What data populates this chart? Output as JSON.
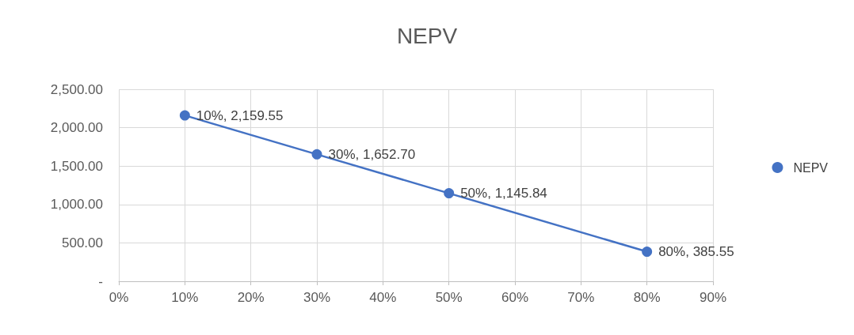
{
  "chart_data": {
    "type": "line",
    "title": "NEPV",
    "x": [
      10,
      30,
      50,
      80
    ],
    "series": [
      {
        "name": "NEPV",
        "color": "#4472c4",
        "values": [
          2159.55,
          1652.7,
          1145.84,
          385.55
        ],
        "value_labels": [
          "10%, 2,159.55",
          "30%, 1,652.70",
          "50%, 1,145.84",
          "80%, 385.55"
        ]
      }
    ],
    "xlim": [
      0,
      90
    ],
    "xticks": [
      {
        "value": 0,
        "label": "0%"
      },
      {
        "value": 10,
        "label": "10%"
      },
      {
        "value": 20,
        "label": "20%"
      },
      {
        "value": 30,
        "label": "30%"
      },
      {
        "value": 40,
        "label": "40%"
      },
      {
        "value": 50,
        "label": "50%"
      },
      {
        "value": 60,
        "label": "60%"
      },
      {
        "value": 70,
        "label": "70%"
      },
      {
        "value": 80,
        "label": "80%"
      },
      {
        "value": 90,
        "label": "90%"
      }
    ],
    "ylim": [
      0,
      2500
    ],
    "yticks": [
      {
        "value": 0,
        "label": "-"
      },
      {
        "value": 500,
        "label": "500.00"
      },
      {
        "value": 1000,
        "label": "1,000.00"
      },
      {
        "value": 1500,
        "label": "1,500.00"
      },
      {
        "value": 2000,
        "label": "2,000.00"
      },
      {
        "value": 2500,
        "label": "2,500.00"
      }
    ],
    "grid": true,
    "legend": "right",
    "marker": "circle",
    "line_style": "solid"
  }
}
